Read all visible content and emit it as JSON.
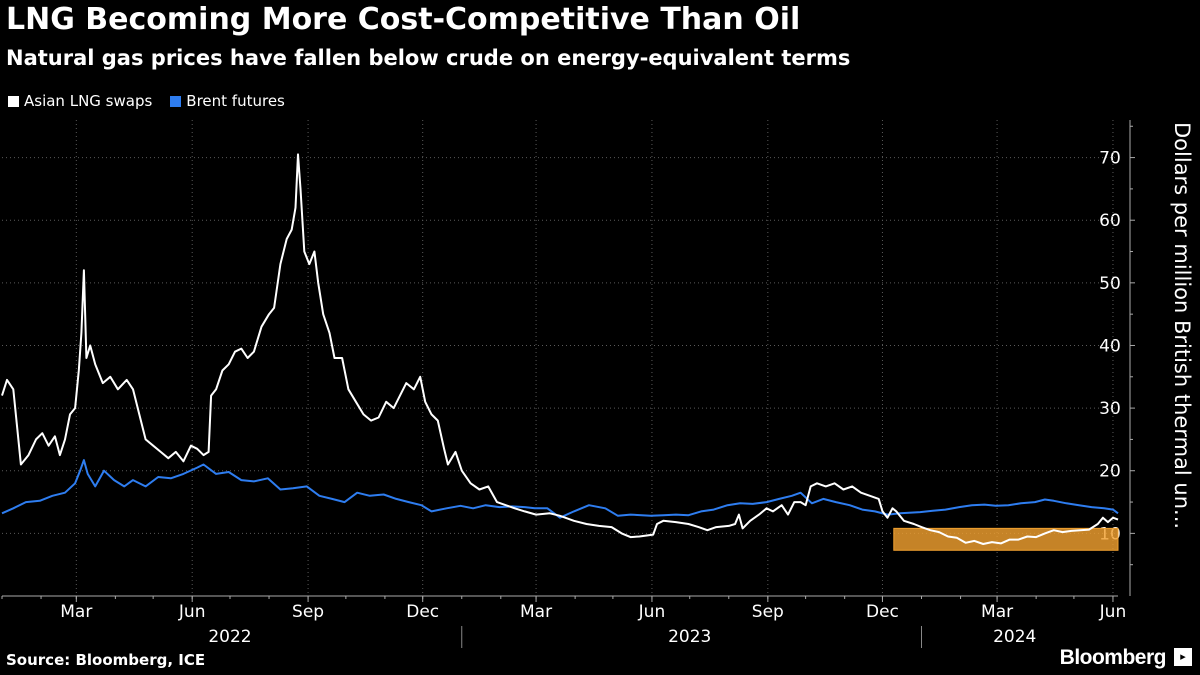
{
  "chart_data": {
    "type": "line",
    "title": "LNG Becoming More Cost-Competitive Than Oil",
    "subtitle": "Natural gas prices have fallen below crude on energy-equivalent terms",
    "ylabel": "Dollars per million British thermal un...",
    "ylim": [
      0,
      76
    ],
    "yticks": [
      10,
      20,
      30,
      40,
      50,
      60,
      70
    ],
    "x_range": [
      "2022-01-01",
      "2024-06-05"
    ],
    "x_month_ticks": [
      {
        "date": "2022-03-01",
        "label": "Mar"
      },
      {
        "date": "2022-06-01",
        "label": "Jun"
      },
      {
        "date": "2022-09-01",
        "label": "Sep"
      },
      {
        "date": "2022-12-01",
        "label": "Dec"
      },
      {
        "date": "2023-03-01",
        "label": "Mar"
      },
      {
        "date": "2023-06-01",
        "label": "Jun"
      },
      {
        "date": "2023-09-01",
        "label": "Sep"
      },
      {
        "date": "2023-12-01",
        "label": "Dec"
      },
      {
        "date": "2024-03-01",
        "label": "Mar"
      },
      {
        "date": "2024-06-01",
        "label": "Jun"
      }
    ],
    "x_year_labels": [
      {
        "label": "2022",
        "center": "2022-07-01"
      },
      {
        "label": "2023",
        "center": "2023-07-01"
      },
      {
        "label": "2024",
        "center": "2024-03-15"
      }
    ],
    "year_separators": [
      "2023-01-01",
      "2024-01-01"
    ],
    "grid": true,
    "legend_position": "top-left",
    "highlight": {
      "x_start": "2023-12-10",
      "x_end": "2024-06-05",
      "y_min": 7.3,
      "y_max": 10.8,
      "color": "#f0a030"
    },
    "series": [
      {
        "name": "Asian LNG swaps",
        "color": "#ffffff",
        "points": [
          [
            "2022-01-01",
            32
          ],
          [
            "2022-01-05",
            34.5
          ],
          [
            "2022-01-10",
            33
          ],
          [
            "2022-01-13",
            27
          ],
          [
            "2022-01-16",
            21
          ],
          [
            "2022-01-22",
            22.5
          ],
          [
            "2022-01-28",
            25
          ],
          [
            "2022-02-02",
            26
          ],
          [
            "2022-02-07",
            24
          ],
          [
            "2022-02-12",
            25.5
          ],
          [
            "2022-02-16",
            22.5
          ],
          [
            "2022-02-20",
            25
          ],
          [
            "2022-02-24",
            29
          ],
          [
            "2022-02-28",
            30
          ],
          [
            "2022-03-03",
            36
          ],
          [
            "2022-03-05",
            42
          ],
          [
            "2022-03-07",
            52
          ],
          [
            "2022-03-09",
            38
          ],
          [
            "2022-03-12",
            40
          ],
          [
            "2022-03-16",
            37
          ],
          [
            "2022-03-22",
            34
          ],
          [
            "2022-03-28",
            35
          ],
          [
            "2022-04-03",
            33
          ],
          [
            "2022-04-10",
            34.5
          ],
          [
            "2022-04-15",
            33
          ],
          [
            "2022-04-20",
            29
          ],
          [
            "2022-04-25",
            25
          ],
          [
            "2022-05-01",
            24
          ],
          [
            "2022-05-07",
            23
          ],
          [
            "2022-05-13",
            22
          ],
          [
            "2022-05-19",
            23
          ],
          [
            "2022-05-25",
            21.5
          ],
          [
            "2022-05-31",
            24
          ],
          [
            "2022-06-05",
            23.5
          ],
          [
            "2022-06-10",
            22.5
          ],
          [
            "2022-06-14",
            23
          ],
          [
            "2022-06-16",
            32
          ],
          [
            "2022-06-20",
            33
          ],
          [
            "2022-06-25",
            36
          ],
          [
            "2022-06-30",
            37
          ],
          [
            "2022-07-05",
            39
          ],
          [
            "2022-07-10",
            39.5
          ],
          [
            "2022-07-15",
            38
          ],
          [
            "2022-07-20",
            39
          ],
          [
            "2022-07-26",
            43
          ],
          [
            "2022-08-01",
            45
          ],
          [
            "2022-08-05",
            46
          ],
          [
            "2022-08-10",
            53
          ],
          [
            "2022-08-15",
            57
          ],
          [
            "2022-08-19",
            58.5
          ],
          [
            "2022-08-22",
            62
          ],
          [
            "2022-08-24",
            70.5
          ],
          [
            "2022-08-26",
            65
          ],
          [
            "2022-08-29",
            55
          ],
          [
            "2022-09-02",
            53
          ],
          [
            "2022-09-06",
            55
          ],
          [
            "2022-09-09",
            50
          ],
          [
            "2022-09-13",
            45
          ],
          [
            "2022-09-18",
            42
          ],
          [
            "2022-09-22",
            38
          ],
          [
            "2022-09-28",
            38
          ],
          [
            "2022-10-03",
            33
          ],
          [
            "2022-10-09",
            31
          ],
          [
            "2022-10-15",
            29
          ],
          [
            "2022-10-21",
            28
          ],
          [
            "2022-10-27",
            28.5
          ],
          [
            "2022-11-02",
            31
          ],
          [
            "2022-11-08",
            30
          ],
          [
            "2022-11-13",
            32
          ],
          [
            "2022-11-18",
            34
          ],
          [
            "2022-11-24",
            33
          ],
          [
            "2022-11-29",
            35
          ],
          [
            "2022-12-03",
            31
          ],
          [
            "2022-12-08",
            29
          ],
          [
            "2022-12-13",
            28
          ],
          [
            "2022-12-18",
            23.5
          ],
          [
            "2022-12-21",
            21
          ],
          [
            "2022-12-24",
            22
          ],
          [
            "2022-12-27",
            23
          ],
          [
            "2023-01-01",
            20
          ],
          [
            "2023-01-08",
            18
          ],
          [
            "2023-01-15",
            17
          ],
          [
            "2023-01-22",
            17.5
          ],
          [
            "2023-01-29",
            15
          ],
          [
            "2023-02-05",
            14.5
          ],
          [
            "2023-02-12",
            14
          ],
          [
            "2023-02-20",
            13.5
          ],
          [
            "2023-03-01",
            13
          ],
          [
            "2023-03-12",
            13.2
          ],
          [
            "2023-03-20",
            12.8
          ],
          [
            "2023-03-31",
            12
          ],
          [
            "2023-04-10",
            11.5
          ],
          [
            "2023-04-20",
            11.2
          ],
          [
            "2023-04-30",
            11
          ],
          [
            "2023-05-08",
            10
          ],
          [
            "2023-05-15",
            9.4
          ],
          [
            "2023-05-22",
            9.5
          ],
          [
            "2023-06-02",
            9.8
          ],
          [
            "2023-06-05",
            11.5
          ],
          [
            "2023-06-10",
            12
          ],
          [
            "2023-06-20",
            11.8
          ],
          [
            "2023-06-30",
            11.5
          ],
          [
            "2023-07-08",
            11
          ],
          [
            "2023-07-15",
            10.5
          ],
          [
            "2023-07-22",
            11
          ],
          [
            "2023-08-01",
            11.2
          ],
          [
            "2023-08-06",
            11.5
          ],
          [
            "2023-08-09",
            13
          ],
          [
            "2023-08-12",
            10.8
          ],
          [
            "2023-08-18",
            12
          ],
          [
            "2023-08-25",
            13
          ],
          [
            "2023-08-31",
            14
          ],
          [
            "2023-09-05",
            13.5
          ],
          [
            "2023-09-12",
            14.5
          ],
          [
            "2023-09-17",
            13
          ],
          [
            "2023-09-22",
            15
          ],
          [
            "2023-09-27",
            15
          ],
          [
            "2023-10-01",
            14.5
          ],
          [
            "2023-10-05",
            17.5
          ],
          [
            "2023-10-10",
            18
          ],
          [
            "2023-10-17",
            17.5
          ],
          [
            "2023-10-24",
            18
          ],
          [
            "2023-10-31",
            17
          ],
          [
            "2023-11-07",
            17.5
          ],
          [
            "2023-11-14",
            16.5
          ],
          [
            "2023-11-21",
            16
          ],
          [
            "2023-11-28",
            15.5
          ],
          [
            "2023-12-01",
            13.5
          ],
          [
            "2023-12-05",
            12.5
          ],
          [
            "2023-12-09",
            14
          ],
          [
            "2023-12-12",
            13.5
          ],
          [
            "2023-12-18",
            12
          ],
          [
            "2023-12-26",
            11.5
          ],
          [
            "2024-01-01",
            11
          ],
          [
            "2024-01-08",
            10.5
          ],
          [
            "2024-01-15",
            10.2
          ],
          [
            "2024-01-22",
            9.5
          ],
          [
            "2024-01-29",
            9.3
          ],
          [
            "2024-02-05",
            8.5
          ],
          [
            "2024-02-12",
            8.8
          ],
          [
            "2024-02-19",
            8.3
          ],
          [
            "2024-02-26",
            8.6
          ],
          [
            "2024-03-04",
            8.4
          ],
          [
            "2024-03-11",
            9
          ],
          [
            "2024-03-18",
            9
          ],
          [
            "2024-03-25",
            9.5
          ],
          [
            "2024-04-01",
            9.4
          ],
          [
            "2024-04-08",
            10
          ],
          [
            "2024-04-15",
            10.5
          ],
          [
            "2024-04-22",
            10.2
          ],
          [
            "2024-04-29",
            10.4
          ],
          [
            "2024-05-06",
            10.5
          ],
          [
            "2024-05-13",
            10.6
          ],
          [
            "2024-05-20",
            11.5
          ],
          [
            "2024-05-24",
            12.5
          ],
          [
            "2024-05-28",
            11.8
          ],
          [
            "2024-06-01",
            12.5
          ],
          [
            "2024-06-05",
            12.2
          ]
        ]
      },
      {
        "name": "Brent futures",
        "color": "#2e7df0",
        "points": [
          [
            "2022-01-01",
            13.2
          ],
          [
            "2022-01-10",
            14
          ],
          [
            "2022-01-20",
            15
          ],
          [
            "2022-01-31",
            15.2
          ],
          [
            "2022-02-10",
            16
          ],
          [
            "2022-02-20",
            16.5
          ],
          [
            "2022-02-28",
            18
          ],
          [
            "2022-03-04",
            20
          ],
          [
            "2022-03-07",
            21.7
          ],
          [
            "2022-03-10",
            19.5
          ],
          [
            "2022-03-16",
            17.5
          ],
          [
            "2022-03-23",
            20
          ],
          [
            "2022-03-31",
            18.5
          ],
          [
            "2022-04-08",
            17.5
          ],
          [
            "2022-04-15",
            18.5
          ],
          [
            "2022-04-25",
            17.5
          ],
          [
            "2022-05-05",
            19
          ],
          [
            "2022-05-15",
            18.8
          ],
          [
            "2022-05-25",
            19.5
          ],
          [
            "2022-06-05",
            20.5
          ],
          [
            "2022-06-10",
            21
          ],
          [
            "2022-06-20",
            19.5
          ],
          [
            "2022-06-30",
            19.8
          ],
          [
            "2022-07-10",
            18.5
          ],
          [
            "2022-07-20",
            18.3
          ],
          [
            "2022-07-31",
            18.8
          ],
          [
            "2022-08-10",
            17
          ],
          [
            "2022-08-20",
            17.2
          ],
          [
            "2022-08-31",
            17.5
          ],
          [
            "2022-09-10",
            16
          ],
          [
            "2022-09-20",
            15.5
          ],
          [
            "2022-09-30",
            15
          ],
          [
            "2022-10-10",
            16.5
          ],
          [
            "2022-10-20",
            16
          ],
          [
            "2022-10-31",
            16.2
          ],
          [
            "2022-11-10",
            15.5
          ],
          [
            "2022-11-20",
            15
          ],
          [
            "2022-11-30",
            14.5
          ],
          [
            "2022-12-08",
            13.5
          ],
          [
            "2022-12-20",
            14
          ],
          [
            "2022-12-31",
            14.4
          ],
          [
            "2023-01-10",
            14
          ],
          [
            "2023-01-20",
            14.5
          ],
          [
            "2023-01-31",
            14.2
          ],
          [
            "2023-02-10",
            14.3
          ],
          [
            "2023-02-20",
            14.2
          ],
          [
            "2023-02-28",
            14
          ],
          [
            "2023-03-10",
            14
          ],
          [
            "2023-03-20",
            12.5
          ],
          [
            "2023-03-31",
            13.5
          ],
          [
            "2023-04-12",
            14.5
          ],
          [
            "2023-04-25",
            14
          ],
          [
            "2023-05-05",
            12.8
          ],
          [
            "2023-05-15",
            13
          ],
          [
            "2023-05-31",
            12.8
          ],
          [
            "2023-06-10",
            12.9
          ],
          [
            "2023-06-20",
            13
          ],
          [
            "2023-06-30",
            12.9
          ],
          [
            "2023-07-10",
            13.5
          ],
          [
            "2023-07-20",
            13.8
          ],
          [
            "2023-07-31",
            14.5
          ],
          [
            "2023-08-10",
            14.8
          ],
          [
            "2023-08-20",
            14.7
          ],
          [
            "2023-08-31",
            15
          ],
          [
            "2023-09-10",
            15.5
          ],
          [
            "2023-09-20",
            16
          ],
          [
            "2023-09-27",
            16.5
          ],
          [
            "2023-10-06",
            14.8
          ],
          [
            "2023-10-15",
            15.5
          ],
          [
            "2023-10-25",
            15
          ],
          [
            "2023-11-05",
            14.5
          ],
          [
            "2023-11-15",
            13.8
          ],
          [
            "2023-11-25",
            13.5
          ],
          [
            "2023-12-05",
            13
          ],
          [
            "2023-12-15",
            13.2
          ],
          [
            "2023-12-31",
            13.4
          ],
          [
            "2024-01-10",
            13.6
          ],
          [
            "2024-01-20",
            13.8
          ],
          [
            "2024-01-31",
            14.2
          ],
          [
            "2024-02-10",
            14.5
          ],
          [
            "2024-02-20",
            14.6
          ],
          [
            "2024-02-29",
            14.4
          ],
          [
            "2024-03-10",
            14.5
          ],
          [
            "2024-03-20",
            14.8
          ],
          [
            "2024-03-31",
            15
          ],
          [
            "2024-04-08",
            15.4
          ],
          [
            "2024-04-15",
            15.2
          ],
          [
            "2024-04-25",
            14.8
          ],
          [
            "2024-05-05",
            14.5
          ],
          [
            "2024-05-15",
            14.2
          ],
          [
            "2024-05-25",
            14
          ],
          [
            "2024-06-01",
            13.8
          ],
          [
            "2024-06-05",
            13.2
          ]
        ]
      }
    ]
  },
  "legend": {
    "items": [
      {
        "label": "Asian LNG swaps"
      },
      {
        "label": "Brent futures"
      }
    ]
  },
  "footer": {
    "source": "Source: Bloomberg, ICE",
    "brand": "Bloomberg"
  }
}
